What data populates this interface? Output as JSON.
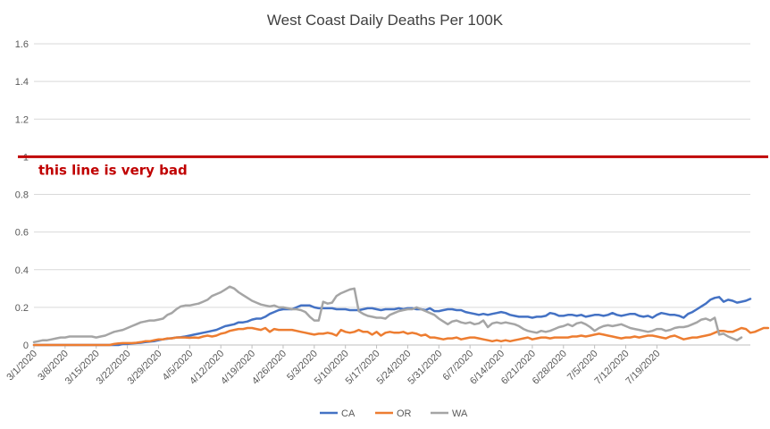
{
  "chart_data": {
    "type": "line",
    "title": "West Coast Daily Deaths Per 100K",
    "xlabel": "",
    "ylabel": "",
    "ylim": [
      0,
      1.6
    ],
    "yticks": [
      "0",
      "0.2",
      "0.4",
      "0.6",
      "0.8",
      "1",
      "1.2",
      "1.4",
      "1.6"
    ],
    "x_start": "3/1/2020",
    "x_end": "7/20/2020",
    "x_ticks": [
      "3/1/2020",
      "3/8/2020",
      "3/15/2020",
      "3/22/2020",
      "3/29/2020",
      "4/5/2020",
      "4/12/2020",
      "4/19/2020",
      "4/26/2020",
      "5/3/2020",
      "5/10/2020",
      "5/17/2020",
      "5/24/2020",
      "5/31/2020",
      "6/7/2020",
      "6/14/2020",
      "6/21/2020",
      "6/28/2020",
      "7/5/2020",
      "7/12/2020",
      "7/19/2020"
    ],
    "grid": "horizontal",
    "legend": "bottom",
    "annotation": {
      "text": "this line is very bad",
      "y": 1.0,
      "color": "#c00000"
    },
    "series": [
      {
        "name": "CA",
        "color": "#4472c4",
        "values": [
          0,
          0,
          0,
          0,
          0,
          0,
          0,
          0,
          0,
          0,
          0,
          0,
          0,
          0,
          0,
          0,
          0,
          0,
          0,
          0,
          0.005,
          0.005,
          0.008,
          0.01,
          0.012,
          0.015,
          0.018,
          0.02,
          0.025,
          0.03,
          0.033,
          0.036,
          0.04,
          0.042,
          0.045,
          0.05,
          0.055,
          0.06,
          0.065,
          0.07,
          0.075,
          0.08,
          0.09,
          0.1,
          0.105,
          0.11,
          0.12,
          0.12,
          0.125,
          0.135,
          0.14,
          0.14,
          0.15,
          0.165,
          0.175,
          0.185,
          0.19,
          0.19,
          0.19,
          0.2,
          0.21,
          0.21,
          0.21,
          0.2,
          0.195,
          0.195,
          0.195,
          0.195,
          0.19,
          0.19,
          0.19,
          0.185,
          0.185,
          0.185,
          0.19,
          0.195,
          0.195,
          0.19,
          0.185,
          0.19,
          0.19,
          0.19,
          0.195,
          0.19,
          0.195,
          0.195,
          0.19,
          0.19,
          0.185,
          0.195,
          0.18,
          0.18,
          0.185,
          0.19,
          0.19,
          0.185,
          0.185,
          0.175,
          0.17,
          0.165,
          0.16,
          0.165,
          0.16,
          0.165,
          0.17,
          0.175,
          0.17,
          0.16,
          0.155,
          0.15,
          0.15,
          0.15,
          0.145,
          0.15,
          0.15,
          0.155,
          0.17,
          0.165,
          0.155,
          0.155,
          0.16,
          0.16,
          0.155,
          0.16,
          0.15,
          0.155,
          0.16,
          0.16,
          0.155,
          0.16,
          0.17,
          0.16,
          0.155,
          0.16,
          0.165,
          0.165,
          0.155,
          0.15,
          0.155,
          0.145,
          0.16,
          0.17,
          0.165,
          0.16,
          0.16,
          0.155,
          0.145,
          0.165,
          0.175,
          0.19,
          0.205,
          0.22,
          0.24,
          0.25,
          0.255,
          0.23,
          0.24,
          0.235,
          0.225,
          0.23,
          0.235,
          0.245
        ]
      },
      {
        "name": "OR",
        "color": "#ed7d31",
        "values": [
          0,
          0,
          0,
          0,
          0,
          0,
          0,
          0,
          0,
          0,
          0,
          0,
          0,
          0,
          0,
          0,
          0,
          0,
          0.005,
          0.008,
          0.01,
          0.01,
          0.01,
          0.012,
          0.015,
          0.02,
          0.02,
          0.025,
          0.03,
          0.03,
          0.035,
          0.035,
          0.04,
          0.04,
          0.04,
          0.038,
          0.04,
          0.038,
          0.045,
          0.05,
          0.045,
          0.05,
          0.06,
          0.065,
          0.075,
          0.08,
          0.085,
          0.085,
          0.09,
          0.09,
          0.085,
          0.08,
          0.09,
          0.07,
          0.085,
          0.08,
          0.08,
          0.08,
          0.08,
          0.075,
          0.07,
          0.065,
          0.06,
          0.055,
          0.06,
          0.06,
          0.065,
          0.06,
          0.05,
          0.08,
          0.07,
          0.065,
          0.07,
          0.08,
          0.07,
          0.07,
          0.055,
          0.07,
          0.05,
          0.065,
          0.07,
          0.065,
          0.065,
          0.07,
          0.06,
          0.065,
          0.06,
          0.05,
          0.055,
          0.04,
          0.04,
          0.035,
          0.03,
          0.035,
          0.035,
          0.04,
          0.03,
          0.035,
          0.04,
          0.04,
          0.035,
          0.03,
          0.025,
          0.02,
          0.025,
          0.02,
          0.025,
          0.02,
          0.025,
          0.03,
          0.035,
          0.04,
          0.03,
          0.035,
          0.04,
          0.04,
          0.035,
          0.04,
          0.04,
          0.04,
          0.04,
          0.045,
          0.045,
          0.05,
          0.045,
          0.05,
          0.055,
          0.06,
          0.055,
          0.05,
          0.045,
          0.04,
          0.035,
          0.04,
          0.04,
          0.045,
          0.04,
          0.045,
          0.05,
          0.05,
          0.045,
          0.04,
          0.035,
          0.045,
          0.05,
          0.04,
          0.03,
          0.035,
          0.04,
          0.04,
          0.045,
          0.05,
          0.055,
          0.065,
          0.075,
          0.075,
          0.07,
          0.07,
          0.08,
          0.09,
          0.085,
          0.065,
          0.07,
          0.08,
          0.09,
          0.09
        ]
      },
      {
        "name": "WA",
        "color": "#a5a5a5",
        "values": [
          0.015,
          0.02,
          0.025,
          0.025,
          0.03,
          0.035,
          0.04,
          0.04,
          0.045,
          0.045,
          0.045,
          0.045,
          0.045,
          0.045,
          0.04,
          0.045,
          0.05,
          0.06,
          0.07,
          0.075,
          0.08,
          0.09,
          0.1,
          0.11,
          0.12,
          0.125,
          0.13,
          0.13,
          0.135,
          0.14,
          0.16,
          0.17,
          0.19,
          0.205,
          0.21,
          0.21,
          0.215,
          0.22,
          0.23,
          0.24,
          0.26,
          0.27,
          0.28,
          0.295,
          0.31,
          0.3,
          0.28,
          0.265,
          0.25,
          0.235,
          0.225,
          0.215,
          0.21,
          0.205,
          0.21,
          0.2,
          0.2,
          0.195,
          0.19,
          0.19,
          0.185,
          0.175,
          0.15,
          0.13,
          0.13,
          0.23,
          0.22,
          0.225,
          0.26,
          0.275,
          0.285,
          0.295,
          0.3,
          0.18,
          0.165,
          0.155,
          0.15,
          0.145,
          0.145,
          0.14,
          0.16,
          0.17,
          0.18,
          0.185,
          0.19,
          0.19,
          0.2,
          0.19,
          0.18,
          0.17,
          0.16,
          0.14,
          0.125,
          0.11,
          0.125,
          0.13,
          0.12,
          0.115,
          0.12,
          0.11,
          0.115,
          0.13,
          0.095,
          0.115,
          0.12,
          0.115,
          0.12,
          0.115,
          0.11,
          0.1,
          0.085,
          0.075,
          0.07,
          0.065,
          0.075,
          0.07,
          0.075,
          0.085,
          0.095,
          0.1,
          0.11,
          0.1,
          0.115,
          0.12,
          0.11,
          0.095,
          0.075,
          0.09,
          0.1,
          0.105,
          0.1,
          0.105,
          0.11,
          0.1,
          0.09,
          0.085,
          0.08,
          0.075,
          0.07,
          0.075,
          0.085,
          0.085,
          0.075,
          0.08,
          0.09,
          0.095,
          0.095,
          0.1,
          0.11,
          0.12,
          0.135,
          0.14,
          0.13,
          0.145,
          0.055,
          0.06,
          0.045,
          0.035,
          0.025,
          0.04
        ]
      }
    ]
  }
}
